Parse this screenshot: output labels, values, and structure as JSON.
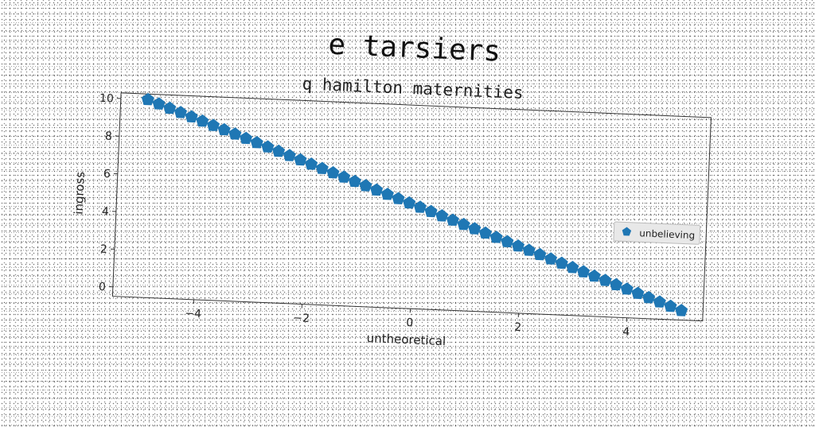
{
  "chart_data": {
    "type": "scatter",
    "title": "e tarsiers",
    "subtitle": "q hamilton maternities",
    "xlabel": "untheoretical",
    "ylabel": "ingross",
    "xlim": [
      -5.5,
      5.4
    ],
    "ylim": [
      -0.5,
      10.3
    ],
    "xticks": [
      -4,
      -2,
      0,
      2,
      4
    ],
    "xtick_labels": [
      "−4",
      "−2",
      "0",
      "2",
      "4"
    ],
    "yticks": [
      0,
      2,
      4,
      6,
      8,
      10
    ],
    "ytick_labels": [
      "0",
      "2",
      "4",
      "6",
      "8",
      "10"
    ],
    "grid": false,
    "legend": {
      "placement": "center-right"
    },
    "marker": "pentagon",
    "series": [
      {
        "name": "unbelieving",
        "color": "#1f77b4",
        "x_start": -5.0,
        "x_end": 5.0,
        "count": 50,
        "y_start": 10.0,
        "y_end": 0.0
      }
    ]
  }
}
